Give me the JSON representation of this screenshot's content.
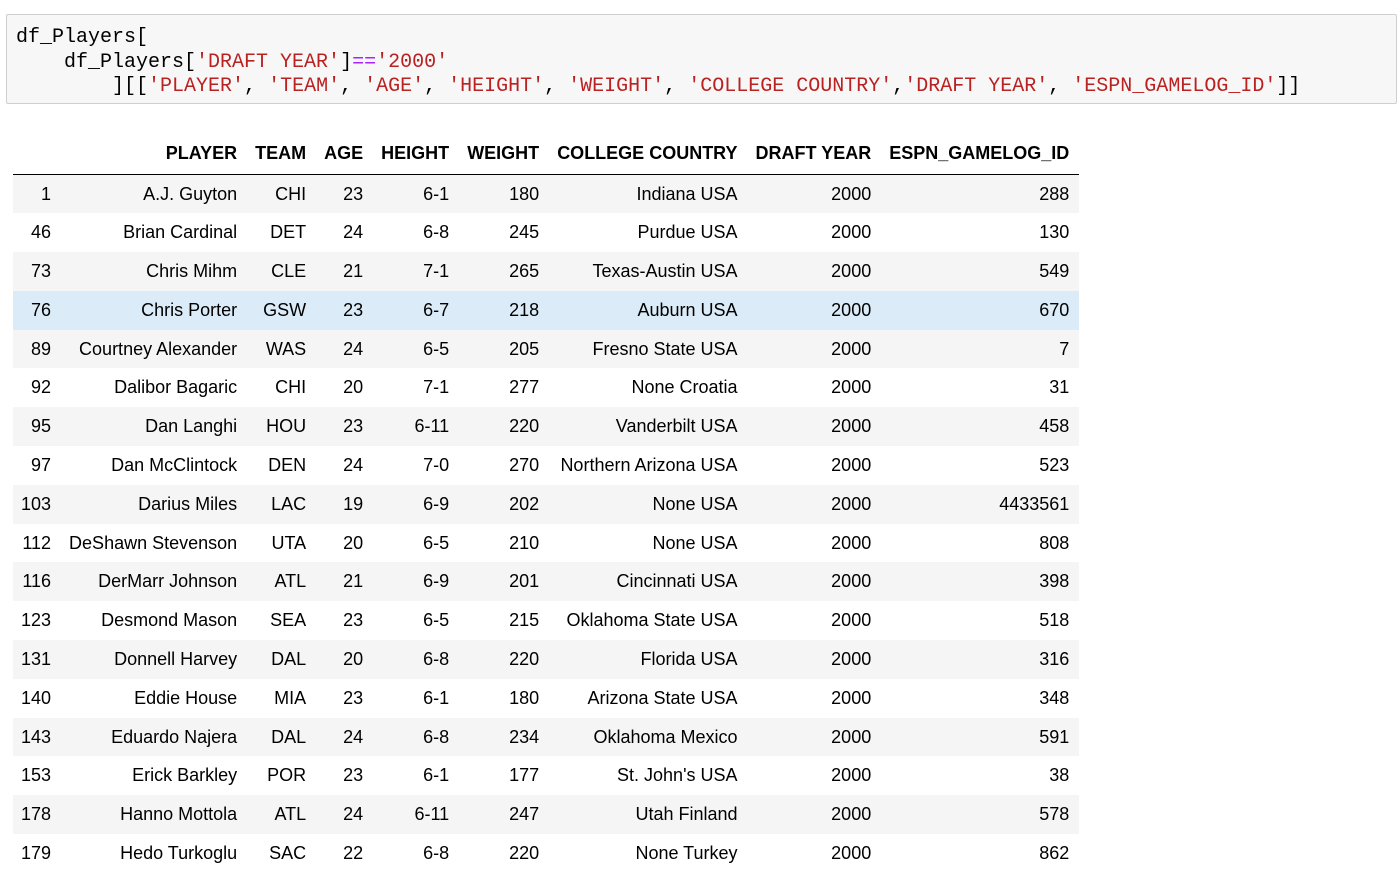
{
  "code_cell": {
    "line1": "df_Players[",
    "line2_var": "    df_Players[",
    "line2_key": "'DRAFT YEAR'",
    "line2_close": "]",
    "line2_op": "==",
    "line2_val": "'2000'",
    "line3_open": "        ][[",
    "line3_cols": [
      "'PLAYER'",
      "'TEAM'",
      "'AGE'",
      "'HEIGHT'",
      "'WEIGHT'",
      "'COLLEGE COUNTRY'",
      "'DRAFT YEAR'",
      "'ESPN_GAMELOG_ID'"
    ],
    "line3_seps": [
      ", ",
      ", ",
      ", ",
      ", ",
      ", ",
      ",",
      ", "
    ],
    "line3_close": "]]"
  },
  "table": {
    "columns": [
      "",
      "PLAYER",
      "TEAM",
      "AGE",
      "HEIGHT",
      "WEIGHT",
      "COLLEGE COUNTRY",
      "DRAFT YEAR",
      "ESPN_GAMELOG_ID"
    ],
    "hovered_row": 3,
    "rows": [
      [
        "1",
        "A.J. Guyton",
        "CHI",
        "23",
        "6-1",
        "180",
        "Indiana USA",
        "2000",
        "288"
      ],
      [
        "46",
        "Brian Cardinal",
        "DET",
        "24",
        "6-8",
        "245",
        "Purdue USA",
        "2000",
        "130"
      ],
      [
        "73",
        "Chris Mihm",
        "CLE",
        "21",
        "7-1",
        "265",
        "Texas-Austin USA",
        "2000",
        "549"
      ],
      [
        "76",
        "Chris Porter",
        "GSW",
        "23",
        "6-7",
        "218",
        "Auburn USA",
        "2000",
        "670"
      ],
      [
        "89",
        "Courtney Alexander",
        "WAS",
        "24",
        "6-5",
        "205",
        "Fresno State USA",
        "2000",
        "7"
      ],
      [
        "92",
        "Dalibor Bagaric",
        "CHI",
        "20",
        "7-1",
        "277",
        "None Croatia",
        "2000",
        "31"
      ],
      [
        "95",
        "Dan Langhi",
        "HOU",
        "23",
        "6-11",
        "220",
        "Vanderbilt USA",
        "2000",
        "458"
      ],
      [
        "97",
        "Dan McClintock",
        "DEN",
        "24",
        "7-0",
        "270",
        "Northern Arizona USA",
        "2000",
        "523"
      ],
      [
        "103",
        "Darius Miles",
        "LAC",
        "19",
        "6-9",
        "202",
        "None USA",
        "2000",
        "4433561"
      ],
      [
        "112",
        "DeShawn Stevenson",
        "UTA",
        "20",
        "6-5",
        "210",
        "None USA",
        "2000",
        "808"
      ],
      [
        "116",
        "DerMarr Johnson",
        "ATL",
        "21",
        "6-9",
        "201",
        "Cincinnati USA",
        "2000",
        "398"
      ],
      [
        "123",
        "Desmond Mason",
        "SEA",
        "23",
        "6-5",
        "215",
        "Oklahoma State USA",
        "2000",
        "518"
      ],
      [
        "131",
        "Donnell Harvey",
        "DAL",
        "20",
        "6-8",
        "220",
        "Florida USA",
        "2000",
        "316"
      ],
      [
        "140",
        "Eddie House",
        "MIA",
        "23",
        "6-1",
        "180",
        "Arizona State USA",
        "2000",
        "348"
      ],
      [
        "143",
        "Eduardo Najera",
        "DAL",
        "24",
        "6-8",
        "234",
        "Oklahoma Mexico",
        "2000",
        "591"
      ],
      [
        "153",
        "Erick Barkley",
        "POR",
        "23",
        "6-1",
        "177",
        "St. John's USA",
        "2000",
        "38"
      ],
      [
        "178",
        "Hanno Mottola",
        "ATL",
        "24",
        "6-11",
        "247",
        "Utah Finland",
        "2000",
        "578"
      ],
      [
        "179",
        "Hedo Turkoglu",
        "SAC",
        "22",
        "6-8",
        "220",
        "None Turkey",
        "2000",
        "862"
      ]
    ]
  }
}
